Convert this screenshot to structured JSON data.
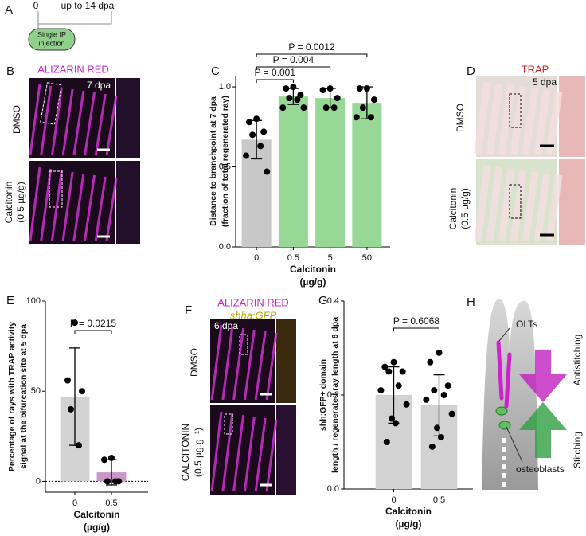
{
  "panels": {
    "a": {
      "letter": "A",
      "start": "0",
      "end": "up to 14 dpa",
      "box": [
        "Single IP",
        "injection"
      ]
    },
    "b": {
      "letter": "B",
      "stain": "ALIZARIN RED",
      "time": "7 dpa",
      "control": "DMSO",
      "treatment": "Calcitonin",
      "dose": "(0.5 µg/g)"
    },
    "d": {
      "letter": "D",
      "stain": "TRAP",
      "time": "5 dpa",
      "control": "DMSO",
      "treatment": "Calcitonin",
      "dose": "(0.5 µg/g)"
    },
    "f": {
      "letter": "F",
      "stain": "ALIZARIN RED",
      "reporter": "shha:GFP",
      "time": "6 dpa",
      "control": "DMSO",
      "treatment": "CALCITONIN",
      "dose": "(0.5 µg.g⁻¹)"
    },
    "h": {
      "letter": "H",
      "cells_top": "OLTs",
      "cells_bottom": "osteoblasts",
      "arrow_top": "Antistitching",
      "arrow_bottom": "Stitching"
    }
  },
  "chart_data": [
    {
      "type": "bar",
      "panel": "C",
      "ylabel": [
        "Distance to branchpoint at 7 dpa",
        "(fraction of total regenerated ray)"
      ],
      "xlabel": [
        "Calcitonin",
        "(µg/g)"
      ],
      "categories": [
        "0",
        "0.5",
        "5",
        "50"
      ],
      "values": [
        0.67,
        0.94,
        0.93,
        0.9
      ],
      "errors": [
        0.12,
        0.05,
        0.06,
        0.1
      ],
      "points": [
        [
          0.8,
          0.78,
          0.72,
          0.7,
          0.63,
          0.57,
          0.47
        ],
        [
          1.0,
          0.99,
          0.95,
          0.93,
          0.92,
          0.87,
          0.87
        ],
        [
          0.99,
          0.98,
          0.93,
          0.87,
          0.87
        ],
        [
          0.99,
          0.99,
          0.92,
          0.87,
          0.81,
          0.81
        ]
      ],
      "colors": [
        "#c8c8c8",
        "#98d896",
        "#98d896",
        "#98d896"
      ],
      "ylim": [
        0,
        1.07
      ],
      "yticks": [
        {
          "value": 0,
          "label": "0.0"
        },
        0.5,
        {
          "value": 1,
          "label": "1.0"
        }
      ],
      "annotations": [
        "P = 0.001",
        "P = 0.004",
        "P = 0.0012"
      ]
    },
    {
      "type": "bar",
      "panel": "E",
      "ylabel": [
        "Percentage of rays with TRAP activity",
        "signal at the bifurcation site at 5 dpa"
      ],
      "xlabel": [
        "Calcitonin",
        "(µg/g)"
      ],
      "categories": [
        "0",
        "0.5"
      ],
      "values": [
        47,
        5
      ],
      "errors": [
        27,
        7
      ],
      "points": [
        [
          88,
          56,
          50,
          40,
          20
        ],
        [
          13,
          12,
          0,
          0,
          0
        ]
      ],
      "colors": [
        "#d2d2d2",
        "#c896c8"
      ],
      "ylim": [
        -6,
        100
      ],
      "yticks": [
        0,
        50,
        100
      ],
      "zero_line": true,
      "annotations": [
        "P = 0.0215"
      ]
    },
    {
      "type": "bar",
      "panel": "G",
      "ylabel": [
        "shh:GFP+ domain",
        "length / regenerated ray length at 6 dpa"
      ],
      "xlabel": [
        "Calcitonin",
        "(µg/g)"
      ],
      "categories": [
        "0",
        "0.5"
      ],
      "values": [
        0.2,
        0.178
      ],
      "errors": [
        0.06,
        0.065
      ],
      "points": [
        [
          0.27,
          0.26,
          0.25,
          0.25,
          0.22,
          0.21,
          0.18,
          0.15,
          0.14,
          0.1
        ],
        [
          0.29,
          0.27,
          0.22,
          0.21,
          0.2,
          0.19,
          0.16,
          0.13,
          0.11,
          0.09
        ]
      ],
      "colors": [
        "#d2d2d2",
        "#d2d2d2"
      ],
      "ylim": [
        0,
        0.4
      ],
      "yticks": [
        {
          "value": 0,
          "label": "0.0"
        },
        0.2,
        0.4
      ],
      "annotations": [
        "P = 0.6068"
      ]
    }
  ]
}
